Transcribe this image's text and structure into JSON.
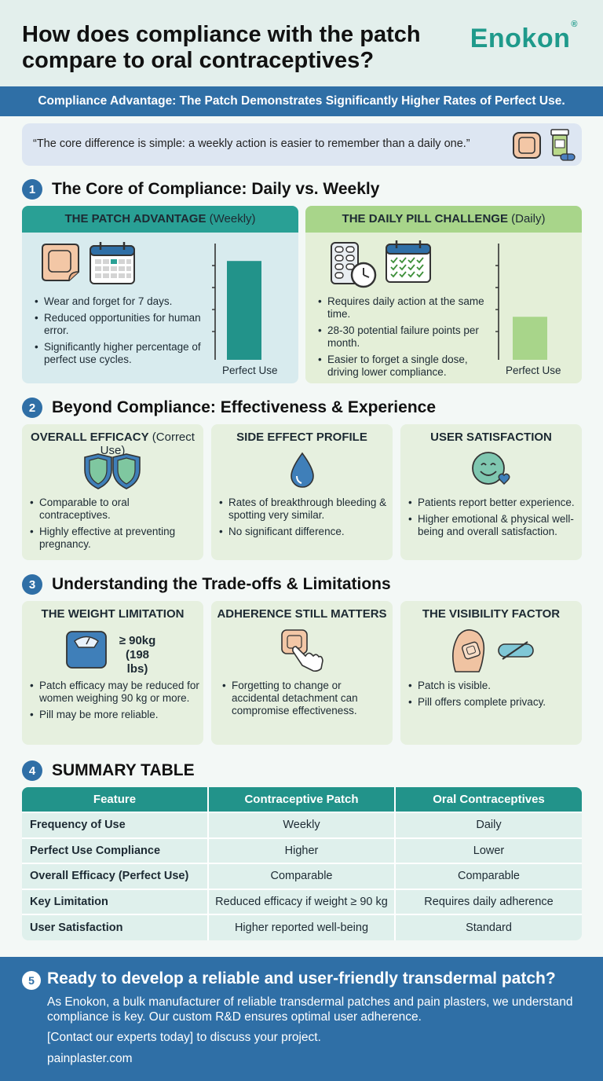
{
  "header": {
    "title": "How does compliance with the patch compare to oral contraceptives?",
    "logo": "Enokon",
    "logo_mark": "®"
  },
  "banner": "Compliance Advantage: The Patch Demonstrates Significantly Higher Rates of Perfect Use.",
  "quote": "“The core difference is simple: a weekly action is easier to remember than a daily one.”",
  "sections": [
    {
      "num": "1",
      "title": "The Core of Compliance: Daily vs. Weekly"
    },
    {
      "num": "2",
      "title": "Beyond Compliance: Effectiveness & Experience"
    },
    {
      "num": "3",
      "title": "Understanding the Trade-offs & Limitations"
    },
    {
      "num": "4",
      "title": "SUMMARY TABLE"
    }
  ],
  "compliance": {
    "patch": {
      "head_bold": "THE PATCH ADVANTAGE",
      "head_light": " (Weekly)",
      "bullets": [
        "Wear and forget for 7 days.",
        "Reduced opportunities for human error.",
        "Significantly higher percentage of perfect use cycles."
      ],
      "chart_label": "Perfect Use",
      "perfect_use_level": 0.85
    },
    "pill": {
      "head_bold": "THE DAILY PILL CHALLENGE",
      "head_light": " (Daily)",
      "bullets": [
        "Requires daily action at the same time.",
        "28-30 potential failure points per month.",
        "Easier to forget a single dose, driving lower compliance."
      ],
      "chart_label": "Perfect Use",
      "perfect_use_level": 0.37
    }
  },
  "experience": [
    {
      "title_bold": "OVERALL EFFICACY",
      "title_light": " (Correct Use)",
      "icon": "shield-icon",
      "bullets": [
        "Comparable to oral contraceptives.",
        "Highly effective at preventing pregnancy."
      ]
    },
    {
      "title_bold": "SIDE EFFECT PROFILE",
      "title_light": "",
      "icon": "droplet-icon",
      "bullets": [
        "Rates of breakthrough bleeding & spotting very similar.",
        "No significant difference."
      ]
    },
    {
      "title_bold": "USER SATISFACTION",
      "title_light": "",
      "icon": "smiley-heart-icon",
      "bullets": [
        "Patients report better experience.",
        "Higher emotional & physical well-being and overall satisfaction."
      ]
    }
  ],
  "limitations": [
    {
      "title": "THE WEIGHT LIMITATION",
      "icon": "scale-icon",
      "weight_line1": "≥ 90kg",
      "weight_line2": "(198 lbs)",
      "bullets": [
        "Patch efficacy may be reduced for women weighing 90 kg or more.",
        "Pill may be more reliable."
      ]
    },
    {
      "title": "ADHERENCE STILL MATTERS",
      "icon": "finger-patch-icon",
      "bullets": [
        "Forgetting to change or accidental detachment can compromise effectiveness."
      ]
    },
    {
      "title": "THE VISIBILITY FACTOR",
      "icon": "arm-patch-icon",
      "bullets": [
        "Patch is visible.",
        "Pill offers complete privacy."
      ]
    }
  ],
  "table": {
    "headers": [
      "Feature",
      "Contraceptive Patch",
      "Oral Contraceptives"
    ],
    "rows": [
      [
        "Frequency of Use",
        "Weekly",
        "Daily"
      ],
      [
        "Perfect Use Compliance",
        "Higher",
        "Lower"
      ],
      [
        "Overall Efficacy (Perfect Use)",
        "Comparable",
        "Comparable"
      ],
      [
        "Key Limitation",
        "Reduced efficacy if weight ≥ 90 kg",
        "Requires daily adherence"
      ],
      [
        "User Satisfaction",
        "Higher reported well-being",
        "Standard"
      ]
    ]
  },
  "footer": {
    "num": "5",
    "title": "Ready to develop a reliable and user-friendly transdermal patch?",
    "body": "As Enokon, a bulk manufacturer of reliable transdermal patches and pain plasters, we understand compliance is key. Our custom R&D ensures optimal user adherence.",
    "cta": "[Contact our experts today] to discuss your project.",
    "url": "painplaster.com"
  },
  "colors": {
    "brand": "#1f9a8b",
    "banner": "#2f6fa6",
    "teal": "#22938a",
    "green": "#a8d58a"
  }
}
